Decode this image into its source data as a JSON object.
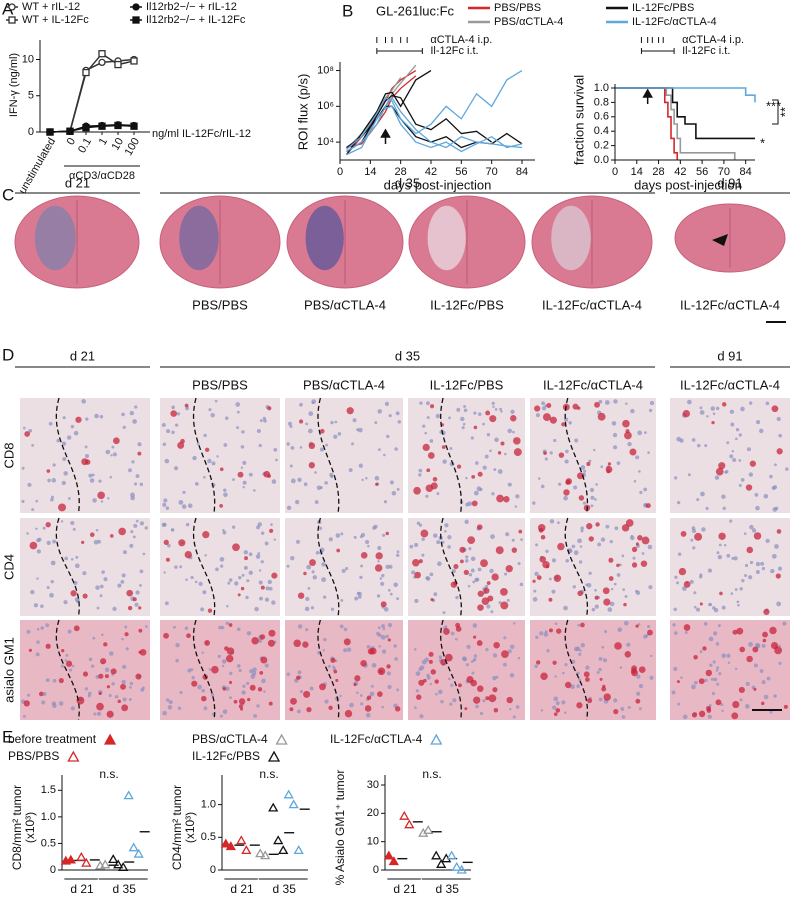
{
  "panel_labels": [
    "A",
    "B",
    "C",
    "D",
    "E"
  ],
  "chart_data": [
    {
      "type": "line",
      "y_label": "IFN-γ (ng/ml)",
      "categories": [
        "unstimulated",
        "0",
        "0.1",
        "1",
        "10",
        "100"
      ],
      "series": [
        {
          "name": "WT + rIL-12",
          "marker": "circle",
          "filled": false,
          "color": "#333333",
          "values": [
            0,
            0.1,
            8.5,
            9.6,
            9.8,
            10
          ]
        },
        {
          "name": "WT + IL-12Fc",
          "marker": "square",
          "filled": false,
          "color": "#333333",
          "values": [
            0,
            0.1,
            8.2,
            10.8,
            9.3,
            9.8
          ]
        },
        {
          "name": "Il12rb2−/− + rIL-12",
          "marker": "circle",
          "filled": true,
          "color": "#111111",
          "values": [
            0,
            0.1,
            0.8,
            0.9,
            1.0,
            0.9
          ]
        },
        {
          "name": "Il12rb2−/− + IL-12Fc",
          "marker": "square",
          "filled": true,
          "color": "#111111",
          "values": [
            0,
            0.1,
            0.6,
            0.8,
            0.9,
            0.8
          ]
        }
      ],
      "ylim": [
        0,
        12
      ],
      "yticks": [
        0,
        5,
        10
      ],
      "annotations": [
        "ng/ml IL-12Fc/rIL-12",
        "αCD3/αCD28"
      ]
    },
    {
      "type": "spaghetti",
      "title": "GL-261luc:Fc",
      "y_label": "ROI flux (p/s)",
      "x_label": "days post-injection",
      "x": [
        3,
        10,
        17,
        21,
        24,
        28,
        35,
        42,
        49,
        56,
        63,
        70,
        77,
        84
      ],
      "groups": [
        {
          "name": "PBS/PBS",
          "color": "#d62728",
          "mice": [
            [
              2000,
              20000,
              300000,
              2000000,
              10000000,
              30000000,
              100000000,
              null,
              null,
              null,
              null,
              null,
              null,
              null
            ],
            [
              5000,
              8000,
              100000,
              500000,
              3000000,
              10000000,
              50000000,
              null,
              null,
              null,
              null,
              null,
              null,
              null
            ]
          ]
        },
        {
          "name": "PBS/αCTLA-4",
          "color": "#999999",
          "mice": [
            [
              3000,
              10000,
              200000,
              1000000,
              5000000,
              20000000,
              200000000,
              null,
              null,
              null,
              null,
              null,
              null,
              null
            ],
            [
              4000,
              30000,
              500000,
              3000000,
              8000000,
              40000000,
              null,
              null,
              null,
              null,
              null,
              null,
              null,
              null
            ]
          ]
        },
        {
          "name": "IL-12Fc/PBS",
          "color": "#111111",
          "mice": [
            [
              3000,
              10000,
              300000,
              2000000,
              4000000,
              3000000,
              100000,
              50000,
              200000,
              30000,
              40000,
              10000,
              null,
              null
            ],
            [
              2000,
              30000,
              500000,
              5000000,
              6000000,
              1000000,
              30000000,
              100000000,
              null,
              null,
              null,
              null,
              null,
              null
            ],
            [
              5000,
              20000,
              200000,
              1000000,
              1000000,
              200000,
              20000,
              10000,
              20000,
              5000,
              10000,
              8000,
              30000,
              8000
            ]
          ]
        },
        {
          "name": "IL-12Fc/αCTLA-4",
          "color": "#5fa8dc",
          "mice": [
            [
              3000,
              10000,
              100000,
              1000000,
              3000000,
              500000,
              50000,
              10000,
              5000,
              20000,
              10000,
              8000,
              6000,
              5000
            ],
            [
              4000,
              20000,
              400000,
              3000000,
              2000000,
              200000,
              30000,
              100000,
              1000000,
              200000,
              5000000,
              1000000,
              30000000,
              100000000
            ],
            [
              2000,
              5000,
              200000,
              800000,
              1000000,
              100000,
              10000,
              5000,
              10000,
              3000,
              8000,
              20000,
              5000,
              8000
            ]
          ]
        }
      ],
      "log": true,
      "xlim": [
        0,
        90
      ],
      "xticks": [
        0,
        14,
        28,
        42,
        56,
        70,
        84
      ],
      "ylim": [
        1000,
        300000000
      ],
      "yticks": [
        {
          "value": 10000,
          "label": "10⁴"
        },
        {
          "value": 1000000,
          "label": "10⁶"
        },
        {
          "value": 100000000,
          "label": "10⁸"
        }
      ],
      "ctla4_label": "αCTLA-4 i.p.",
      "ctla4_days": [
        17,
        21,
        24,
        28,
        31
      ],
      "il12_label": "Il-12Fc i.t.",
      "il12_days": [
        17,
        38
      ],
      "arrow_day": 21
    },
    {
      "type": "step",
      "y_label": "fraction survival",
      "x_label": "days post-injection",
      "series": [
        {
          "color": "#d62728",
          "x": [
            0,
            30,
            32,
            34,
            36,
            38,
            40
          ],
          "values": [
            1,
            1,
            0.8,
            0.6,
            0.3,
            0.1,
            0
          ]
        },
        {
          "color": "#999999",
          "x": [
            0,
            30,
            33,
            36,
            38,
            40,
            42,
            77
          ],
          "values": [
            1,
            1,
            0.9,
            0.7,
            0.5,
            0.3,
            0.1,
            0
          ]
        },
        {
          "color": "#111111",
          "x": [
            0,
            35,
            37,
            40,
            45,
            52,
            90
          ],
          "values": [
            1,
            1,
            0.8,
            0.6,
            0.5,
            0.3,
            0.3
          ]
        },
        {
          "color": "#5fa8dc",
          "x": [
            0,
            70,
            84,
            90
          ],
          "values": [
            1,
            1,
            0.9,
            0.8
          ]
        }
      ],
      "xlim": [
        0,
        90
      ],
      "xticks": [
        0,
        14,
        28,
        42,
        56,
        70,
        84
      ],
      "ylim": [
        0,
        1
      ],
      "yticks": [
        {
          "value": 0,
          "label": "0.0"
        },
        0.2,
        0.4,
        0.6,
        0.8,
        {
          "value": 1,
          "label": "1.0"
        }
      ],
      "ctla4_label": "αCTLA-4 i.p.",
      "ctla4_days": [
        17,
        21,
        24,
        28,
        31
      ],
      "il12_label": "Il-12Fc i.t.",
      "il12_days": [
        17,
        38
      ],
      "arrow_day": 21,
      "significance": [
        "***",
        "**",
        "*"
      ]
    },
    {
      "type": "dotplot",
      "y_label": [
        "CD8/mm² tumor",
        "(x10³)"
      ],
      "note": "n.s.",
      "x_groups": [
        "d 21",
        "d 35"
      ],
      "ylim": [
        0,
        1.6
      ],
      "yticks": [
        0,
        0.5,
        {
          "value": 1,
          "label": "1.0"
        },
        1.5
      ],
      "groups": [
        {
          "points": [
            0.17,
            0.19
          ],
          "mean": 0.18
        },
        {
          "points": [
            0.24,
            0.13
          ],
          "mean": 0.19
        },
        {
          "points": [
            0.08,
            0.1
          ],
          "mean": 0.09
        },
        {
          "points": [
            0.2,
            0.1,
            0.05
          ],
          "mean": 0.15
        },
        {
          "points": [
            1.4,
            0.42,
            0.3
          ],
          "mean": 0.72
        }
      ]
    },
    {
      "type": "dotplot",
      "y_label": [
        "CD4/mm² tumor",
        "(x10³)"
      ],
      "note": "n.s.",
      "x_groups": [
        "d 21",
        "d 35"
      ],
      "ylim": [
        0,
        1.3
      ],
      "yticks": [
        0,
        0.5,
        {
          "value": 1,
          "label": "1.0"
        }
      ],
      "groups": [
        {
          "points": [
            0.4,
            0.36
          ],
          "mean": 0.38
        },
        {
          "points": [
            0.45,
            0.3
          ],
          "mean": 0.38
        },
        {
          "points": [
            0.25,
            0.22
          ],
          "mean": 0.24
        },
        {
          "points": [
            0.95,
            0.45,
            0.3
          ],
          "mean": 0.57
        },
        {
          "points": [
            1.15,
            1.0,
            0.3
          ],
          "mean": 0.93
        }
      ]
    },
    {
      "type": "dotplot",
      "y_label": [
        "% Asialo GM1⁺ tumor"
      ],
      "note": "n.s.",
      "x_groups": [
        "d 21",
        "d 35"
      ],
      "ylim": [
        0,
        30
      ],
      "yticks": [
        0,
        10,
        20,
        30
      ],
      "groups": [
        {
          "points": [
            5,
            3
          ],
          "mean": 4
        },
        {
          "points": [
            19,
            16
          ],
          "mean": 17
        },
        {
          "points": [
            13,
            14
          ],
          "mean": 13.5
        },
        {
          "points": [
            5,
            2,
            4
          ],
          "mean": 4
        },
        {
          "points": [
            5,
            1,
            0
          ],
          "mean": 2.7
        }
      ]
    }
  ],
  "panel_c": {
    "days": [
      "d 21",
      "d 35",
      "d 91"
    ],
    "captions": [
      "PBS/PBS",
      "PBS/αCTLA-4",
      "IL-12Fc/PBS",
      "IL-12Fc/αCTLA-4",
      "IL-12Fc/αCTLA-4"
    ]
  },
  "panel_d": {
    "days": [
      "d 21",
      "d 35",
      "d 91"
    ],
    "columns": [
      "PBS/PBS",
      "PBS/αCTLA-4",
      "IL-12Fc/PBS",
      "IL-12Fc/αCTLA-4",
      "IL-12Fc/αCTLA-4"
    ],
    "rows": [
      "CD8",
      "CD4",
      "asialo GM1"
    ]
  },
  "panel_e_legend": [
    {
      "label": "before treatment",
      "color": "#d62728",
      "filled": true
    },
    {
      "label": "PBS/PBS",
      "color": "#d62728",
      "filled": false
    },
    {
      "label": "PBS/αCTLA-4",
      "color": "#999999",
      "filled": false
    },
    {
      "label": "IL-12Fc/PBS",
      "color": "#111111",
      "filled": false
    },
    {
      "label": "IL-12Fc/αCTLA-4",
      "color": "#5fa8dc",
      "filled": false
    }
  ]
}
